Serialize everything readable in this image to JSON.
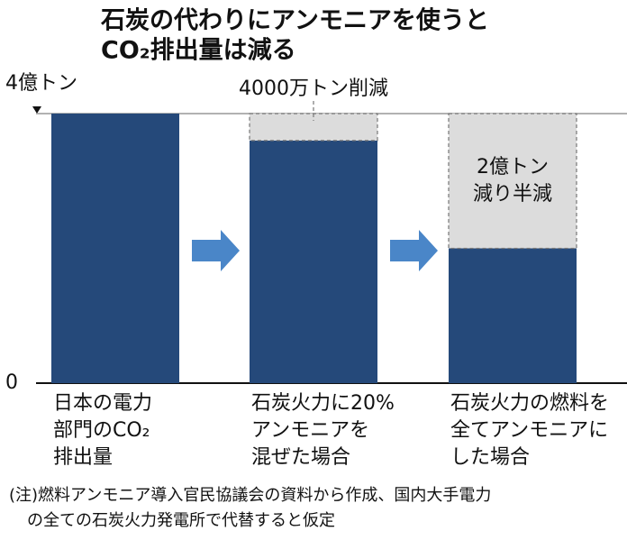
{
  "chart_data": {
    "type": "stacked_bar",
    "title": [
      "石炭の代わりにアンモニアを使うと",
      "CO₂排出量は減る"
    ],
    "categories": [
      [
        "日本の電力",
        "部門のCO₂",
        "排出量"
      ],
      [
        "石炭火力に20%",
        "アンモニアを",
        "混ぜた場合"
      ],
      [
        "石炭火力の燃料を",
        "全てアンモニアに",
        "した場合"
      ]
    ],
    "series": [
      {
        "color": "#25497a",
        "values": [
          4,
          3.6,
          2
        ]
      },
      {
        "color": "#dcdcdc",
        "values": [
          0,
          0.4,
          2
        ]
      }
    ],
    "ylim": [
      0,
      4
    ],
    "yticks": [
      0,
      {
        "value": 4,
        "label": "4億トン"
      }
    ],
    "annotations": [
      {
        "text": [
          "4000万トン削減"
        ]
      },
      {
        "text": [
          "2億トン",
          "減り半減"
        ]
      }
    ],
    "note": [
      "(注)燃料アンモニア導入官民協議会の資料から作成、国内大手電力",
      "の全ての石炭火力発電所で代替すると仮定"
    ]
  }
}
